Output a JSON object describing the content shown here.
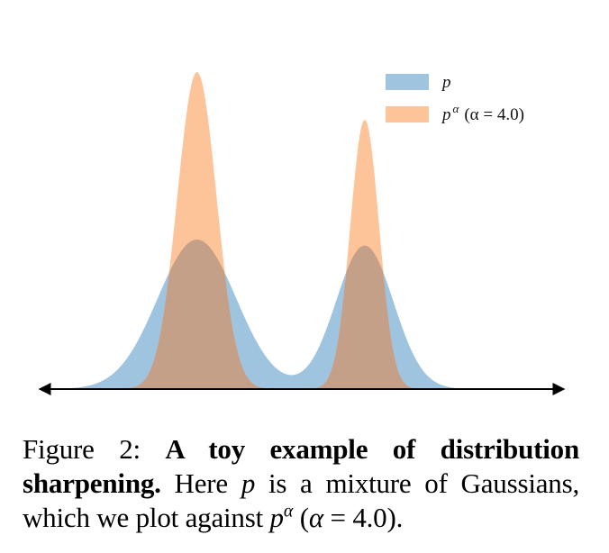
{
  "chart_data": {
    "type": "area",
    "xlabel": "",
    "ylabel": "",
    "grid": false,
    "axes": "x-axis only, double-headed arrow, no ticks",
    "legend_position": "top-right",
    "series": [
      {
        "name": "p",
        "color": "#9ec4e0",
        "description": "Mixture of two Gaussians",
        "components": [
          {
            "mean": 0.3,
            "std": 0.075,
            "peak": 1.0
          },
          {
            "mean": 0.62,
            "std": 0.055,
            "peak": 0.96
          }
        ]
      },
      {
        "name": "p^α (α = 4.0)",
        "color": "#fdc49a",
        "alpha": 4.0,
        "description": "Sharpened distribution"
      }
    ],
    "overlap_color": "#c5a088"
  },
  "legend": {
    "p_label": "p",
    "palpha_base": "p",
    "palpha_sup": "α",
    "palpha_paren": "(α = 4.0)"
  },
  "caption": {
    "prefix": "Figure 2: ",
    "bold": "A toy example of distribution sharpening.",
    "text1": " Here ",
    "p1": "p",
    "text2": " is a mixture of Gaussians, which we plot against ",
    "p2": "p",
    "sup": "α",
    "text3": " (",
    "alpha": "α",
    "text4": " = 4.0)."
  }
}
